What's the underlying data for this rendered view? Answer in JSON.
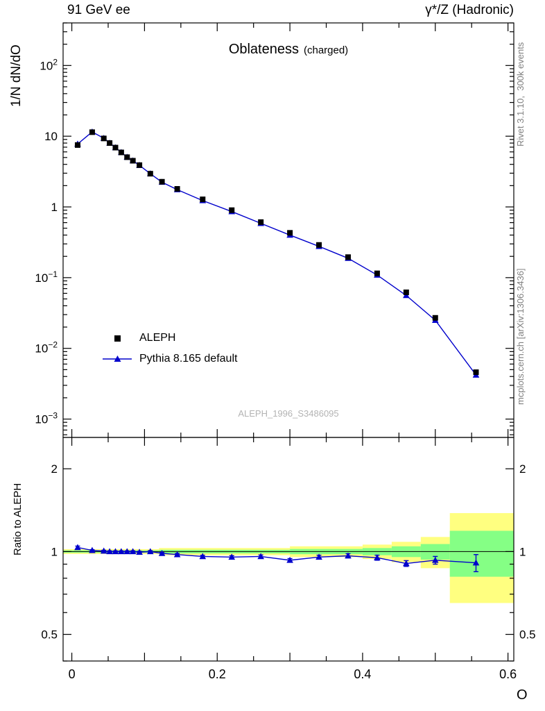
{
  "header": {
    "left": "91 GeV ee",
    "right": "γ*/Z (Hadronic)"
  },
  "side_labels": {
    "top_right": "Rivet 3.1.10,  300k events",
    "bottom_right": "mcplots.cern.ch [arXiv:1306.3436]"
  },
  "titles": {
    "main": "Oblateness",
    "suffix": "(charged)",
    "y_main": "1/N dN/dO",
    "y_ratio": "Ratio to ALEPH",
    "x": "O",
    "watermark": "ALEPH_1996_S3486095"
  },
  "legend": [
    {
      "label": "ALEPH",
      "marker": "square",
      "color": "#000000"
    },
    {
      "label": "Pythia 8.165 default",
      "marker": "triangle-line",
      "color": "#0000cc"
    }
  ],
  "colors": {
    "pythia_blue": "#0000cc",
    "aleph_black": "#000000",
    "band_yellow": "#ffff80",
    "band_green": "#85ff85",
    "watermark_gray": "#b3b3b3",
    "side_text_gray": "#808080"
  },
  "chart_data": [
    {
      "type": "line",
      "id": "main",
      "title": "Oblateness (charged)",
      "xlabel": "O",
      "ylabel": "1/N dN/dO",
      "yscale": "log",
      "grid": false,
      "legend_position": "left-middle",
      "xlim": [
        -0.012,
        0.608
      ],
      "ylim": [
        0.00055,
        400
      ],
      "xticks": [
        0,
        0.2,
        0.4,
        0.6
      ],
      "xticks_minor_step": 0.05,
      "yticks": [
        0.001,
        0.01,
        0.1,
        1,
        10,
        100
      ],
      "x": [
        0.008,
        0.028,
        0.044,
        0.052,
        0.06,
        0.068,
        0.076,
        0.084,
        0.093,
        0.108,
        0.124,
        0.145,
        0.18,
        0.22,
        0.26,
        0.3,
        0.34,
        0.38,
        0.42,
        0.46,
        0.5,
        0.556
      ],
      "series": [
        {
          "name": "ALEPH",
          "marker": "square",
          "color": "#000000",
          "values": [
            7.5,
            11.4,
            9.3,
            8.0,
            6.9,
            5.9,
            5.05,
            4.5,
            3.9,
            2.95,
            2.27,
            1.8,
            1.28,
            0.9,
            0.61,
            0.43,
            0.29,
            0.195,
            0.115,
            0.062,
            0.027,
            0.0046
          ]
        },
        {
          "name": "Pythia 8.165 default",
          "marker": "triangle",
          "color": "#0000cc",
          "line": true,
          "values": [
            7.76,
            11.51,
            9.35,
            8.0,
            6.9,
            5.9,
            5.05,
            4.5,
            3.88,
            2.95,
            2.24,
            1.755,
            1.23,
            0.86,
            0.586,
            0.4,
            0.277,
            0.188,
            0.109,
            0.056,
            0.025,
            0.0042
          ]
        }
      ]
    },
    {
      "type": "line",
      "id": "ratio",
      "ylabel": "Ratio to ALEPH",
      "yscale": "log",
      "xlim": [
        -0.012,
        0.608
      ],
      "ylim": [
        0.4,
        2.6
      ],
      "xticks": [
        0,
        0.2,
        0.4,
        0.6
      ],
      "yticks": [
        0.5,
        1,
        2
      ],
      "yticks_minor": [
        0.4,
        0.6,
        0.7,
        0.8,
        0.9
      ],
      "reference_line": 1,
      "x": [
        0.008,
        0.028,
        0.044,
        0.052,
        0.06,
        0.068,
        0.076,
        0.084,
        0.093,
        0.108,
        0.124,
        0.145,
        0.18,
        0.22,
        0.26,
        0.3,
        0.34,
        0.38,
        0.42,
        0.46,
        0.5,
        0.556
      ],
      "ratio": [
        1.035,
        1.01,
        1.005,
        1.0,
        1.0,
        1.0,
        1.0,
        1.0,
        0.995,
        1.0,
        0.985,
        0.975,
        0.96,
        0.955,
        0.96,
        0.93,
        0.955,
        0.965,
        0.95,
        0.905,
        0.93,
        0.91
      ],
      "ratio_err": [
        0.012,
        0.006,
        0.006,
        0.006,
        0.006,
        0.006,
        0.006,
        0.007,
        0.007,
        0.008,
        0.008,
        0.009,
        0.01,
        0.011,
        0.012,
        0.013,
        0.015,
        0.017,
        0.02,
        0.022,
        0.03,
        0.065
      ],
      "bands": [
        {
          "x0": -0.012,
          "x1": 0.12,
          "yellow": [
            0.98,
            1.02
          ],
          "green": [
            0.99,
            1.01
          ]
        },
        {
          "x0": 0.12,
          "x1": 0.3,
          "yellow": [
            0.97,
            1.03
          ],
          "green": [
            0.985,
            1.015
          ]
        },
        {
          "x0": 0.3,
          "x1": 0.4,
          "yellow": [
            0.955,
            1.045
          ],
          "green": [
            0.978,
            1.022
          ]
        },
        {
          "x0": 0.4,
          "x1": 0.44,
          "yellow": [
            0.94,
            1.06
          ],
          "green": [
            0.97,
            1.03
          ]
        },
        {
          "x0": 0.44,
          "x1": 0.48,
          "yellow": [
            0.915,
            1.085
          ],
          "green": [
            0.955,
            1.045
          ]
        },
        {
          "x0": 0.48,
          "x1": 0.52,
          "yellow": [
            0.87,
            1.13
          ],
          "green": [
            0.935,
            1.065
          ]
        },
        {
          "x0": 0.52,
          "x1": 0.608,
          "yellow": [
            0.65,
            1.38
          ],
          "green": [
            0.81,
            1.19
          ]
        }
      ]
    }
  ]
}
